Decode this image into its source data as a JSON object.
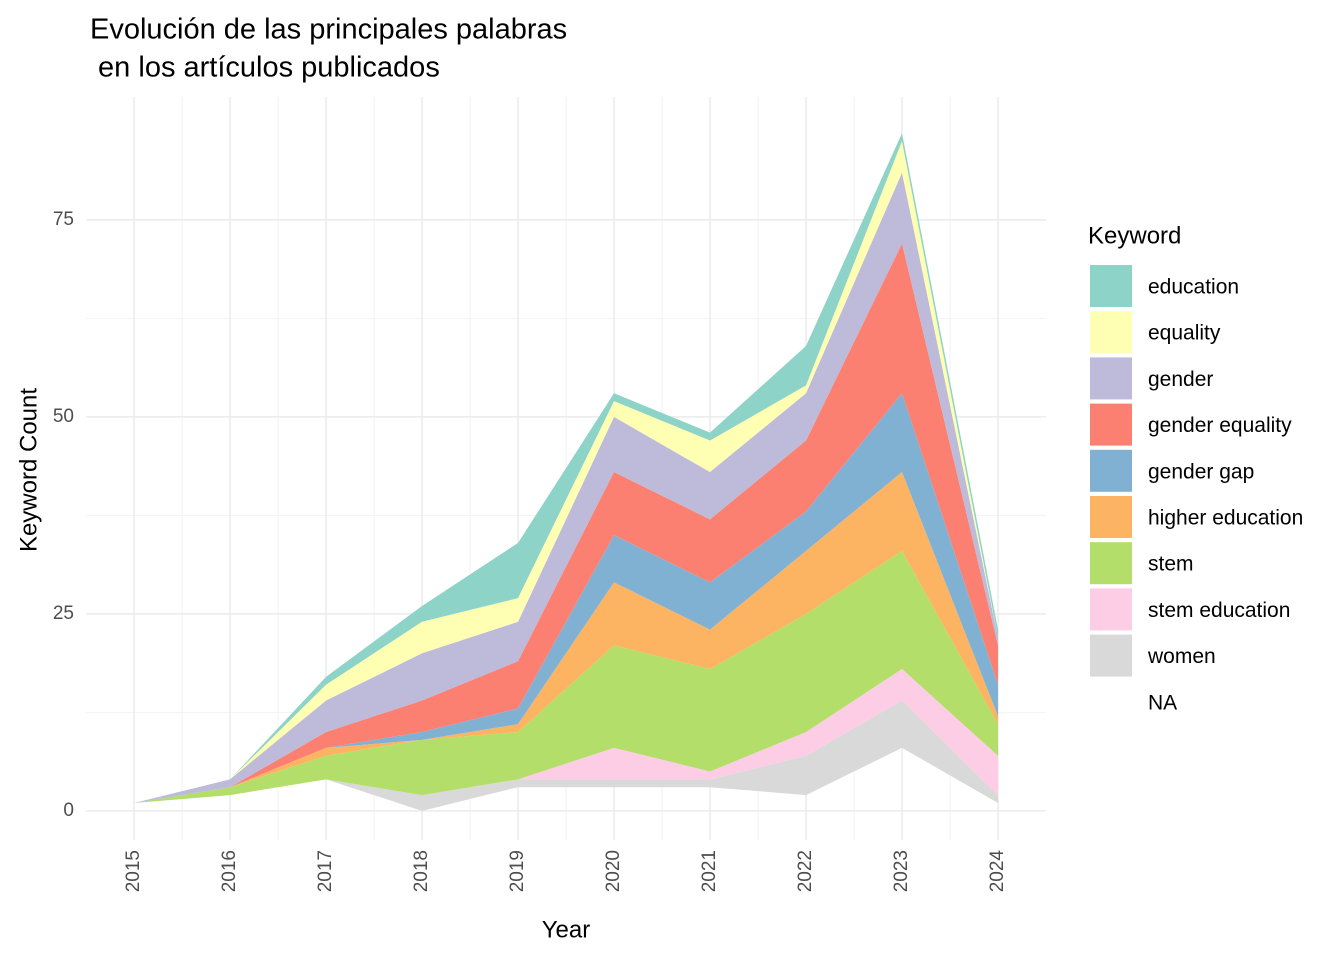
{
  "chart_data": {
    "type": "stacked-area",
    "title": [
      "Evolución de las principales palabras",
      " en los artículos publicados"
    ],
    "x_label": "Year",
    "y_label": "Keyword Count",
    "legend_title": "Keyword",
    "x": [
      2015,
      2016,
      2017,
      2018,
      2019,
      2020,
      2021,
      2022,
      2023,
      2024
    ],
    "xlim": [
      2014.5,
      2024.5
    ],
    "xticks": [
      2015,
      2016,
      2017,
      2018,
      2019,
      2020,
      2021,
      2022,
      2023,
      2024
    ],
    "ylim": [
      -3.7,
      90.6
    ],
    "yticks": [
      0,
      25,
      50,
      75
    ],
    "grid": true,
    "legend": "right",
    "series": [
      {
        "name": "education",
        "color": "#8dd3c7",
        "values": [
          0,
          0,
          1,
          2,
          7,
          1,
          1,
          5,
          1,
          1
        ]
      },
      {
        "name": "equality",
        "color": "#ffffb3",
        "values": [
          0,
          0,
          2,
          4,
          3,
          2,
          4,
          1,
          4,
          0
        ]
      },
      {
        "name": "gender",
        "color": "#bebada",
        "values": [
          0,
          1,
          4,
          6,
          5,
          7,
          6,
          6,
          9,
          1
        ]
      },
      {
        "name": "gender equality",
        "color": "#fb8072",
        "values": [
          0,
          0,
          2,
          4,
          6,
          8,
          8,
          9,
          19,
          5
        ]
      },
      {
        "name": "gender gap",
        "color": "#80b1d3",
        "values": [
          0,
          0,
          0,
          1,
          2,
          6,
          6,
          5,
          10,
          4
        ]
      },
      {
        "name": "higher education",
        "color": "#fdb462",
        "values": [
          0,
          0,
          1,
          0,
          1,
          8,
          5,
          8,
          10,
          1
        ]
      },
      {
        "name": "stem",
        "color": "#b3de69",
        "values": [
          0,
          1,
          3,
          7,
          6,
          13,
          13,
          15,
          15,
          4
        ]
      },
      {
        "name": "stem education",
        "color": "#fccde5",
        "values": [
          0,
          0,
          0,
          0,
          0,
          4,
          1,
          3,
          4,
          5
        ]
      },
      {
        "name": "women",
        "color": "#d9d9d9",
        "values": [
          0,
          0,
          0,
          2,
          1,
          1,
          1,
          5,
          6,
          1
        ]
      },
      {
        "name": "NA",
        "color": "none",
        "values": [
          1,
          2,
          4,
          0,
          3,
          3,
          3,
          2,
          8,
          1
        ]
      }
    ]
  }
}
